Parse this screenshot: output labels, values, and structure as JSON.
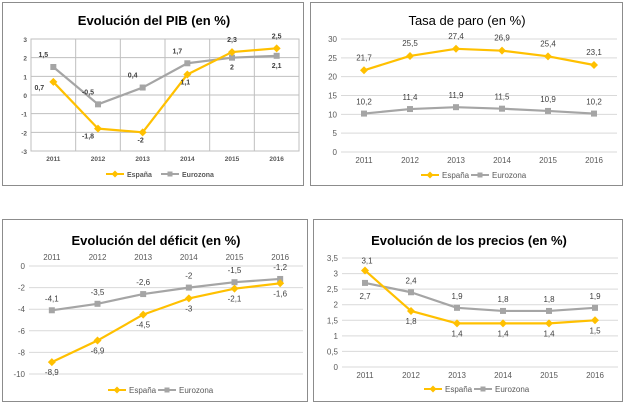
{
  "chart_data": [
    {
      "type": "line",
      "title": "Evolución del PIB (en %)",
      "categories": [
        "2011",
        "2012",
        "2013",
        "2014",
        "2015",
        "2016"
      ],
      "ylim": [
        -3,
        3
      ],
      "yticks": [
        "-3",
        "-2",
        "-1",
        "0",
        "1",
        "2",
        "3"
      ],
      "grid": true,
      "legend": "bottom",
      "series": [
        {
          "name": "España",
          "color": "#FFC000",
          "marker": "diamond",
          "values": [
            0.7,
            -1.8,
            -2,
            1.1,
            2.3,
            2.5
          ],
          "labels": [
            "0,7",
            "-1,8",
            "-2",
            "1,1",
            "2,3",
            "2,5"
          ]
        },
        {
          "name": "Eurozona",
          "color": "#A5A5A5",
          "marker": "square",
          "values": [
            1.5,
            -0.5,
            0.4,
            1.7,
            2,
            2.1
          ],
          "labels": [
            "1,5",
            "-0,5",
            "0,4",
            "1,7",
            "2",
            "2,1"
          ]
        }
      ]
    },
    {
      "type": "line",
      "title": "Tasa de paro (en %)",
      "categories": [
        "2011",
        "2012",
        "2013",
        "2014",
        "2015",
        "2016"
      ],
      "ylim": [
        0,
        30
      ],
      "yticks": [
        "0",
        "5",
        "10",
        "15",
        "20",
        "25",
        "30"
      ],
      "grid": true,
      "legend": "bottom",
      "series": [
        {
          "name": "España",
          "color": "#FFC000",
          "marker": "diamond",
          "values": [
            21.7,
            25.5,
            27.4,
            26.9,
            25.4,
            23.1
          ],
          "labels": [
            "21,7",
            "25,5",
            "27,4",
            "26,9",
            "25,4",
            "23,1"
          ]
        },
        {
          "name": "Eurozona",
          "color": "#A5A5A5",
          "marker": "square",
          "values": [
            10.2,
            11.4,
            11.9,
            11.5,
            10.9,
            10.2
          ],
          "labels": [
            "10,2",
            "11,4",
            "11,9",
            "11,5",
            "10,9",
            "10,2"
          ]
        }
      ]
    },
    {
      "type": "line",
      "title": "Evolución del déficit (en %)",
      "categories": [
        "2011",
        "2012",
        "2013",
        "2014",
        "2015",
        "2016"
      ],
      "ylim": [
        -10,
        0
      ],
      "yticks": [
        "-10",
        "-8",
        "-6",
        "-4",
        "-2",
        "0"
      ],
      "grid": true,
      "legend": "bottom",
      "x_axis_position": "top",
      "series": [
        {
          "name": "España",
          "color": "#FFC000",
          "marker": "diamond",
          "values": [
            -8.9,
            -6.9,
            -4.5,
            -3,
            -2.1,
            -1.6
          ],
          "labels": [
            "-8,9",
            "-6,9",
            "-4,5",
            "-3",
            "-2,1",
            "-1,6"
          ]
        },
        {
          "name": "Eurozona",
          "color": "#A5A5A5",
          "marker": "square",
          "values": [
            -4.1,
            -3.5,
            -2.6,
            -2,
            -1.5,
            -1.2
          ],
          "labels": [
            "-4,1",
            "-3,5",
            "-2,6",
            "-2",
            "-1,5",
            "-1,2"
          ]
        }
      ]
    },
    {
      "type": "line",
      "title": "Evolución de los precios (en %)",
      "categories": [
        "2011",
        "2012",
        "2013",
        "2014",
        "2015",
        "2016"
      ],
      "ylim": [
        0,
        3.5
      ],
      "yticks": [
        "0",
        "0,5",
        "1",
        "1,5",
        "2",
        "2,5",
        "3",
        "3,5"
      ],
      "grid": true,
      "legend": "bottom",
      "series": [
        {
          "name": "España",
          "color": "#FFC000",
          "marker": "diamond",
          "values": [
            3.1,
            1.8,
            1.4,
            1.4,
            1.4,
            1.5
          ],
          "labels": [
            "3,1",
            "1,8",
            "1,4",
            "1,4",
            "1,4",
            "1,5"
          ]
        },
        {
          "name": "Eurozona",
          "color": "#A5A5A5",
          "marker": "square",
          "values": [
            2.7,
            2.4,
            1.9,
            1.8,
            1.8,
            1.9
          ],
          "labels": [
            "2,7",
            "2,4",
            "1,9",
            "1,8",
            "1,8",
            "1,9"
          ]
        }
      ]
    }
  ]
}
